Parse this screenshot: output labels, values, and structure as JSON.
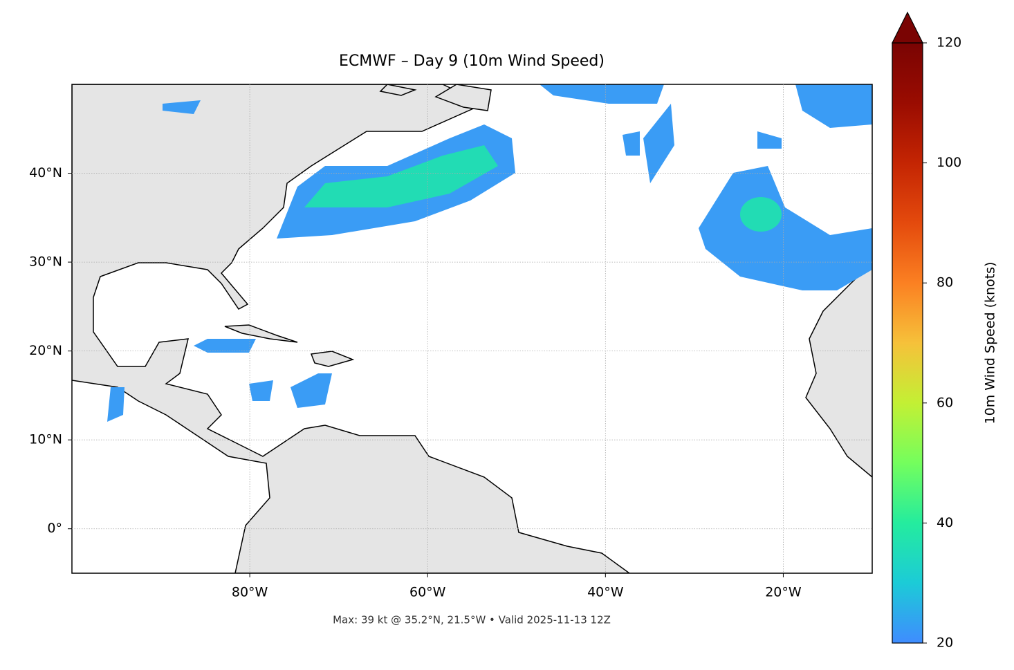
{
  "chart_data": {
    "type": "map",
    "title": "ECMWF – Day 9 (10m Wind Speed)",
    "footer": "Max: 39 kt @ 35.2°N, 21.5°W • Valid 2025-11-13 12Z",
    "xlim": [
      -100,
      -10
    ],
    "ylim": [
      -5,
      50
    ],
    "xticks": [
      {
        "value": -80,
        "label": "80°W"
      },
      {
        "value": -60,
        "label": "60°W"
      },
      {
        "value": -40,
        "label": "40°W"
      },
      {
        "value": -20,
        "label": "20°W"
      }
    ],
    "yticks": [
      {
        "value": 0,
        "label": "0°"
      },
      {
        "value": 10,
        "label": "10°N"
      },
      {
        "value": 20,
        "label": "20°N"
      },
      {
        "value": 30,
        "label": "30°N"
      },
      {
        "value": 40,
        "label": "40°N"
      }
    ],
    "grid": true,
    "colorbar": {
      "label": "10m Wind Speed (knots)",
      "lim": [
        20,
        120
      ],
      "ticks": [
        20,
        40,
        60,
        80,
        100,
        120
      ],
      "colors": [
        "#3f8cff",
        "#1ccbd7",
        "#24ec9e",
        "#74fe5d",
        "#c3f034",
        "#f6c13a",
        "#fb8022",
        "#e44a0d",
        "#c42503",
        "#9a0c01",
        "#7a0403"
      ]
    }
  }
}
